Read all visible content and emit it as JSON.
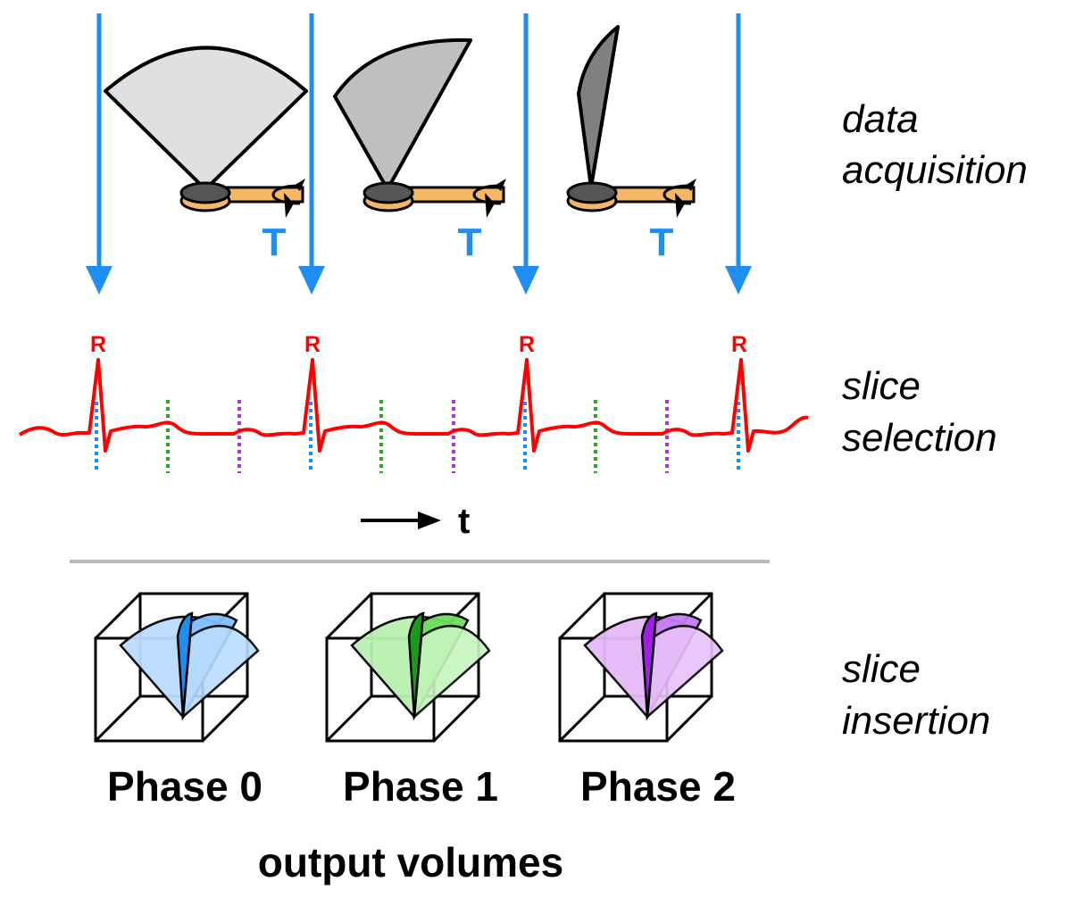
{
  "transducer_label": "T",
  "r_peak_label": "R",
  "time_label": "t",
  "stages": {
    "acquisition": [
      "data",
      "acquisition"
    ],
    "selection": [
      "slice",
      "selection"
    ],
    "insertion": [
      "slice",
      "insertion"
    ]
  },
  "phases": [
    "Phase 0",
    "Phase 1",
    "Phase 2"
  ],
  "output_caption": "output volumes",
  "colors": {
    "trigger_arrow": "#1e8ff0",
    "ecg": "#ff0000",
    "phase0": "#b9dcff",
    "phase1": "#b8f2b0",
    "phase2": "#e4b8f8",
    "transducer": "#f5b766",
    "divider": "#bbbbbb"
  }
}
